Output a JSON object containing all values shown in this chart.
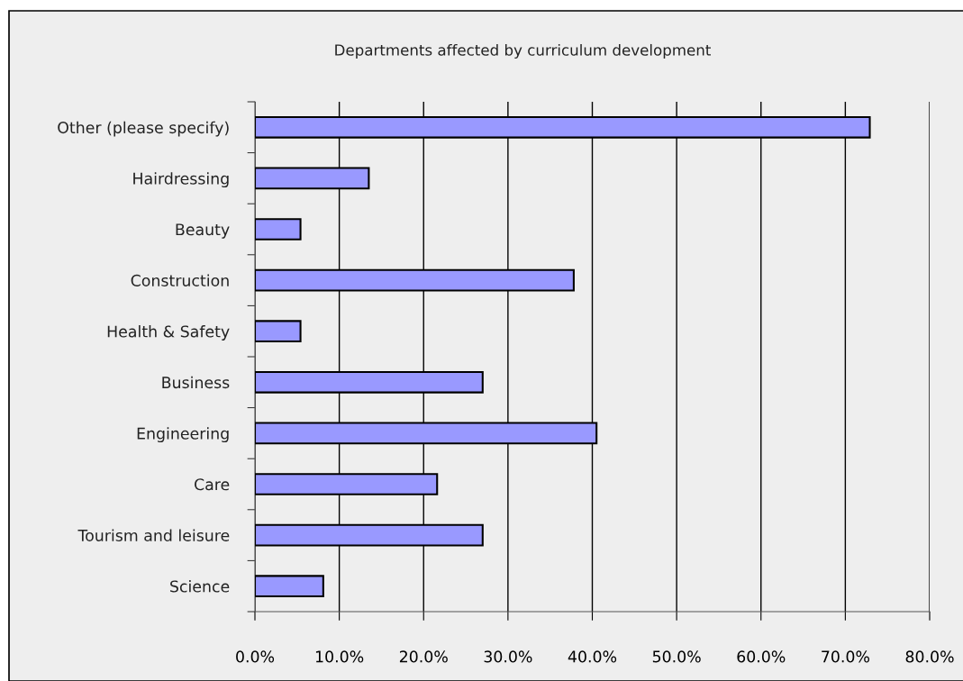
{
  "chart_data": {
    "type": "bar",
    "orientation": "horizontal",
    "title": "Departments affected by curriculum development",
    "categories": [
      "Other (please specify)",
      "Hairdressing",
      "Beauty",
      "Construction",
      "Health & Safety",
      "Business",
      "Engineering",
      "Care",
      "Tourism and leisure",
      "Science"
    ],
    "values": [
      72.9,
      13.5,
      5.4,
      37.8,
      5.4,
      27.0,
      40.5,
      21.6,
      27.0,
      8.1
    ],
    "color": "#9999ff",
    "xlim": [
      0,
      80
    ],
    "xticks": [
      {
        "value": 0,
        "label": "0.0%"
      },
      {
        "value": 10,
        "label": "10.0%"
      },
      {
        "value": 20,
        "label": "20.0%"
      },
      {
        "value": 30,
        "label": "30.0%"
      },
      {
        "value": 40,
        "label": "40.0%"
      },
      {
        "value": 50,
        "label": "50.0%"
      },
      {
        "value": 60,
        "label": "60.0%"
      },
      {
        "value": 70,
        "label": "70.0%"
      },
      {
        "value": 80,
        "label": "80.0%"
      }
    ],
    "grid": "x"
  }
}
